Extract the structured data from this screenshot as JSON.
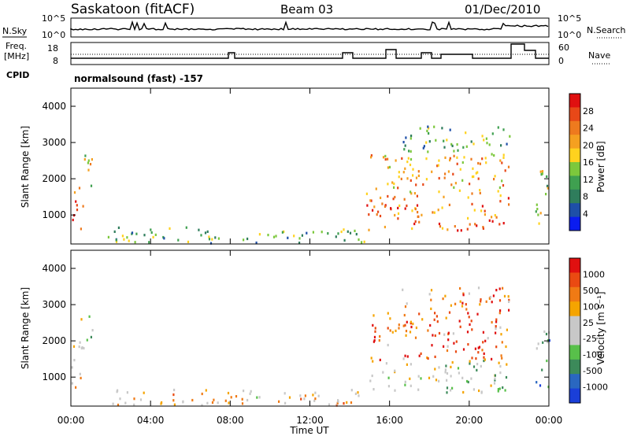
{
  "header": {
    "station": "Saskatoon (fitACF)",
    "beam": "Beam 03",
    "date": "01/Dec/2010"
  },
  "top_panel": {
    "left_label_1": "N.Sky",
    "right_label_1": "N.Search",
    "sky_ticks": [
      "10^5",
      "10^0"
    ],
    "search_ticks": [
      "10^5",
      "10^0"
    ],
    "left_label_2a": "Freq.",
    "left_label_2b": "[MHz]",
    "freq_ticks": [
      "18",
      "8"
    ],
    "right_label_2": "Nave",
    "nave_ticks": [
      "60",
      "0"
    ],
    "cpid_label": "CPID",
    "cpid_text": "normalsound (fast) -157"
  },
  "chart_data": [
    {
      "type": "heatmap",
      "name": "power",
      "ylabel": "Slant Range [km]",
      "xlabel": "",
      "ylim": [
        200,
        4500
      ],
      "yticks": [
        "1000",
        "2000",
        "3000",
        "4000"
      ],
      "colorbar": {
        "label": "Power [dB]",
        "ticks": [
          "4",
          "8",
          "12",
          "16",
          "20",
          "24",
          "28"
        ],
        "colors": [
          "#0a1cf0",
          "#1e4fa8",
          "#2f7d5c",
          "#3fa050",
          "#7cc83c",
          "#ffd21e",
          "#f5a020",
          "#ee7a1e",
          "#e84818",
          "#e01010"
        ]
      },
      "regions": [
        {
          "t0": 0.0,
          "t1": 0.6,
          "r0": 600,
          "r1": 1900,
          "level": 0.85
        },
        {
          "t0": 0.4,
          "t1": 1.1,
          "r0": 1800,
          "r1": 2800,
          "level": 0.55
        },
        {
          "t0": 1.7,
          "t1": 14.8,
          "r0": 250,
          "r1": 700,
          "level": 0.35
        },
        {
          "t0": 14.8,
          "t1": 22.0,
          "r0": 600,
          "r1": 1500,
          "level": 0.75
        },
        {
          "t0": 14.8,
          "t1": 22.0,
          "r0": 1500,
          "r1": 2800,
          "level": 0.65
        },
        {
          "t0": 16.5,
          "t1": 22.0,
          "r0": 2800,
          "r1": 3500,
          "level": 0.35
        },
        {
          "t0": 23.3,
          "t1": 24.0,
          "r0": 500,
          "r1": 2300,
          "level": 0.45
        }
      ]
    },
    {
      "type": "heatmap",
      "name": "velocity",
      "ylabel": "Slant Range [km]",
      "xlabel": "Time UT",
      "ylim": [
        200,
        4500
      ],
      "yticks": [
        "1000",
        "2000",
        "3000",
        "4000"
      ],
      "xticks": [
        "00:00",
        "04:00",
        "08:00",
        "12:00",
        "16:00",
        "20:00",
        "00:00"
      ],
      "x_hours": [
        0,
        4,
        8,
        12,
        16,
        20,
        24
      ],
      "colorbar": {
        "label": "Velocity [m s⁻¹]",
        "ticks": [
          "1000",
          "500",
          "100",
          "25",
          "-25",
          "-100",
          "-500",
          "-1000"
        ],
        "colors": [
          "#1a3fd8",
          "#2a67c0",
          "#3c8a5a",
          "#58c04a",
          "#c8c8c8",
          "#c8c8c8",
          "#f5a400",
          "#f07a14",
          "#ea4a12",
          "#e01010"
        ]
      },
      "regions": [
        {
          "t0": 0.0,
          "t1": 0.6,
          "r0": 600,
          "r1": 1900,
          "level": 0.62
        },
        {
          "t0": 0.4,
          "t1": 1.1,
          "r0": 1800,
          "r1": 2800,
          "level": 0.45
        },
        {
          "t0": 1.7,
          "t1": 14.8,
          "r0": 250,
          "r1": 700,
          "level": 0.62
        },
        {
          "t0": 14.8,
          "t1": 22.0,
          "r0": 600,
          "r1": 1500,
          "level": 0.45
        },
        {
          "t0": 14.8,
          "t1": 22.0,
          "r0": 1500,
          "r1": 2800,
          "level": 0.8
        },
        {
          "t0": 16.5,
          "t1": 22.0,
          "r0": 2800,
          "r1": 3500,
          "level": 0.75
        },
        {
          "t0": 23.3,
          "t1": 24.0,
          "r0": 500,
          "r1": 2300,
          "level": 0.3
        }
      ]
    }
  ]
}
